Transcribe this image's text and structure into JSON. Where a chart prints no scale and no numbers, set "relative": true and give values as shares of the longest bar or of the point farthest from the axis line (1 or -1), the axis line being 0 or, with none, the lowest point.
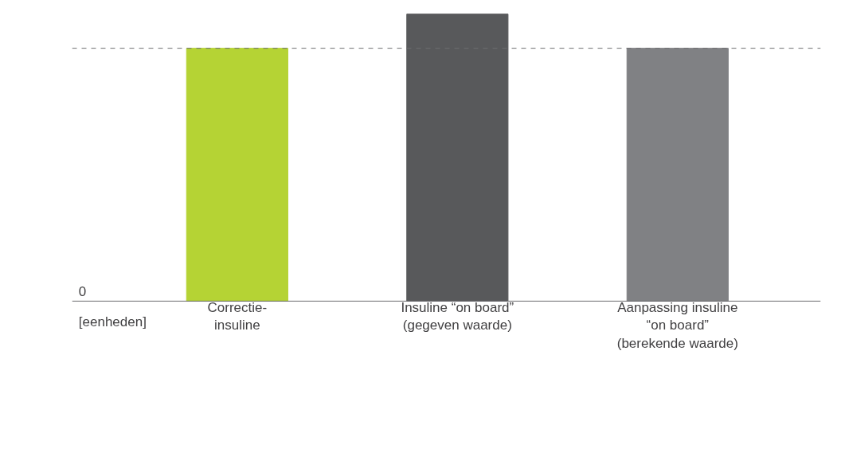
{
  "chart_data": {
    "type": "bar",
    "relative": true,
    "categories": [
      "Correctie-\ninsuline",
      "Insuline “on board”\n(gegeven waarde)",
      "Aanpassing insuline\n“on board”\n(berekende waarde)"
    ],
    "values": [
      0.881,
      1,
      0.881
    ],
    "colors": [
      "#b5d334",
      "#58595b",
      "#808184"
    ],
    "annotations": [
      "0",
      "[eenheden]"
    ],
    "ref_lines": [
      {
        "axis": "y",
        "value": 0.881,
        "label": null,
        "color": "#6d6e71",
        "line_style": "dashed"
      }
    ],
    "grid": false
  }
}
